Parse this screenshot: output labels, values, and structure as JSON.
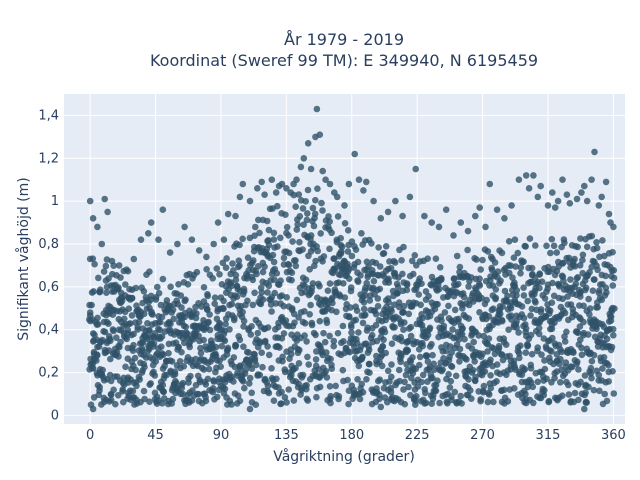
{
  "chart_data": {
    "type": "scatter",
    "title_line1": "År 1979 - 2019",
    "title_line2": "Koordinat (Sweref 99 TM): E 349940, N 6195459",
    "xlabel": "Vågriktning (grader)",
    "ylabel": "Signifikant våghöjd (m)",
    "xlim": [
      -18,
      368
    ],
    "ylim": [
      -0.04,
      1.5
    ],
    "xticks": [
      0,
      45,
      90,
      135,
      180,
      225,
      270,
      315,
      360
    ],
    "xtick_labels": [
      "0",
      "45",
      "90",
      "135",
      "180",
      "225",
      "270",
      "315",
      "360"
    ],
    "yticks": [
      0,
      0.2,
      0.4,
      0.6,
      0.8,
      1.0,
      1.2,
      1.4
    ],
    "ytick_labels": [
      "0",
      "0,2",
      "0,4",
      "0,6",
      "0,8",
      "1",
      "1,2",
      "1,4"
    ],
    "grid": true,
    "marker_color": "#2f5269",
    "plot_bg": "#e5ecf6",
    "envelope": {
      "x": [
        0,
        10,
        20,
        30,
        45,
        60,
        75,
        90,
        100,
        110,
        120,
        135,
        150,
        160,
        170,
        180,
        195,
        210,
        225,
        240,
        255,
        270,
        285,
        300,
        315,
        330,
        345,
        360
      ],
      "upper": [
        0.62,
        0.66,
        0.6,
        0.56,
        0.55,
        0.55,
        0.55,
        0.6,
        0.7,
        0.78,
        0.84,
        0.9,
        0.97,
        0.92,
        0.82,
        0.75,
        0.7,
        0.68,
        0.66,
        0.64,
        0.65,
        0.68,
        0.7,
        0.72,
        0.7,
        0.72,
        0.75,
        0.68
      ],
      "lower": [
        0.05,
        0.05,
        0.05,
        0.05,
        0.05,
        0.05,
        0.05,
        0.05,
        0.05,
        0.05,
        0.05,
        0.05,
        0.05,
        0.05,
        0.05,
        0.05,
        0.05,
        0.05,
        0.05,
        0.05,
        0.05,
        0.05,
        0.05,
        0.05,
        0.05,
        0.05,
        0.05,
        0.05
      ]
    },
    "outliers": [
      [
        0,
        1.0
      ],
      [
        2,
        0.92
      ],
      [
        5,
        0.88
      ],
      [
        10,
        1.01
      ],
      [
        12,
        0.95
      ],
      [
        8,
        0.8
      ],
      [
        15,
        0.72
      ],
      [
        20,
        0.7
      ],
      [
        25,
        0.68
      ],
      [
        30,
        0.73
      ],
      [
        35,
        0.82
      ],
      [
        40,
        0.85
      ],
      [
        42,
        0.9
      ],
      [
        47,
        0.82
      ],
      [
        50,
        0.96
      ],
      [
        55,
        0.76
      ],
      [
        60,
        0.8
      ],
      [
        65,
        0.88
      ],
      [
        70,
        0.82
      ],
      [
        75,
        0.77
      ],
      [
        80,
        0.74
      ],
      [
        85,
        0.8
      ],
      [
        88,
        0.9
      ],
      [
        92,
        0.82
      ],
      [
        95,
        0.94
      ],
      [
        100,
        0.93
      ],
      [
        103,
        1.02
      ],
      [
        105,
        1.08
      ],
      [
        110,
        1.0
      ],
      [
        115,
        1.06
      ],
      [
        118,
        1.09
      ],
      [
        120,
        1.03
      ],
      [
        125,
        1.1
      ],
      [
        128,
        1.04
      ],
      [
        130,
        1.07
      ],
      [
        132,
        1.08
      ],
      [
        135,
        1.06
      ],
      [
        138,
        1.04
      ],
      [
        140,
        1.08
      ],
      [
        142,
        1.1
      ],
      [
        145,
        1.16
      ],
      [
        147,
        1.2
      ],
      [
        150,
        1.27
      ],
      [
        152,
        1.15
      ],
      [
        155,
        1.3
      ],
      [
        156,
        1.43
      ],
      [
        158,
        1.31
      ],
      [
        160,
        1.14
      ],
      [
        162,
        1.1
      ],
      [
        165,
        1.08
      ],
      [
        168,
        1.04
      ],
      [
        170,
        1.02
      ],
      [
        175,
        0.98
      ],
      [
        178,
        1.08
      ],
      [
        182,
        1.22
      ],
      [
        185,
        1.1
      ],
      [
        188,
        1.05
      ],
      [
        190,
        1.09
      ],
      [
        195,
        1.0
      ],
      [
        200,
        0.92
      ],
      [
        205,
        0.95
      ],
      [
        210,
        1.0
      ],
      [
        215,
        0.93
      ],
      [
        220,
        1.02
      ],
      [
        224,
        1.15
      ],
      [
        230,
        0.93
      ],
      [
        235,
        0.9
      ],
      [
        240,
        0.88
      ],
      [
        245,
        0.96
      ],
      [
        250,
        0.84
      ],
      [
        255,
        0.9
      ],
      [
        260,
        0.86
      ],
      [
        265,
        0.93
      ],
      [
        268,
        0.97
      ],
      [
        272,
        0.88
      ],
      [
        275,
        1.08
      ],
      [
        280,
        0.96
      ],
      [
        285,
        0.92
      ],
      [
        290,
        0.98
      ],
      [
        295,
        1.1
      ],
      [
        300,
        1.12
      ],
      [
        302,
        1.06
      ],
      [
        305,
        1.12
      ],
      [
        308,
        1.02
      ],
      [
        310,
        1.07
      ],
      [
        315,
        0.98
      ],
      [
        318,
        1.04
      ],
      [
        320,
        0.97
      ],
      [
        322,
        1.0
      ],
      [
        325,
        1.1
      ],
      [
        328,
        1.03
      ],
      [
        330,
        0.99
      ],
      [
        335,
        1.01
      ],
      [
        338,
        1.04
      ],
      [
        340,
        1.07
      ],
      [
        342,
        1.0
      ],
      [
        345,
        1.1
      ],
      [
        347,
        1.23
      ],
      [
        350,
        0.98
      ],
      [
        352,
        1.02
      ],
      [
        355,
        1.09
      ],
      [
        357,
        0.94
      ],
      [
        358,
        0.9
      ],
      [
        360,
        0.88
      ],
      [
        2,
        0.03
      ],
      [
        110,
        0.03
      ],
      [
        200,
        0.04
      ],
      [
        340,
        0.03
      ]
    ]
  }
}
